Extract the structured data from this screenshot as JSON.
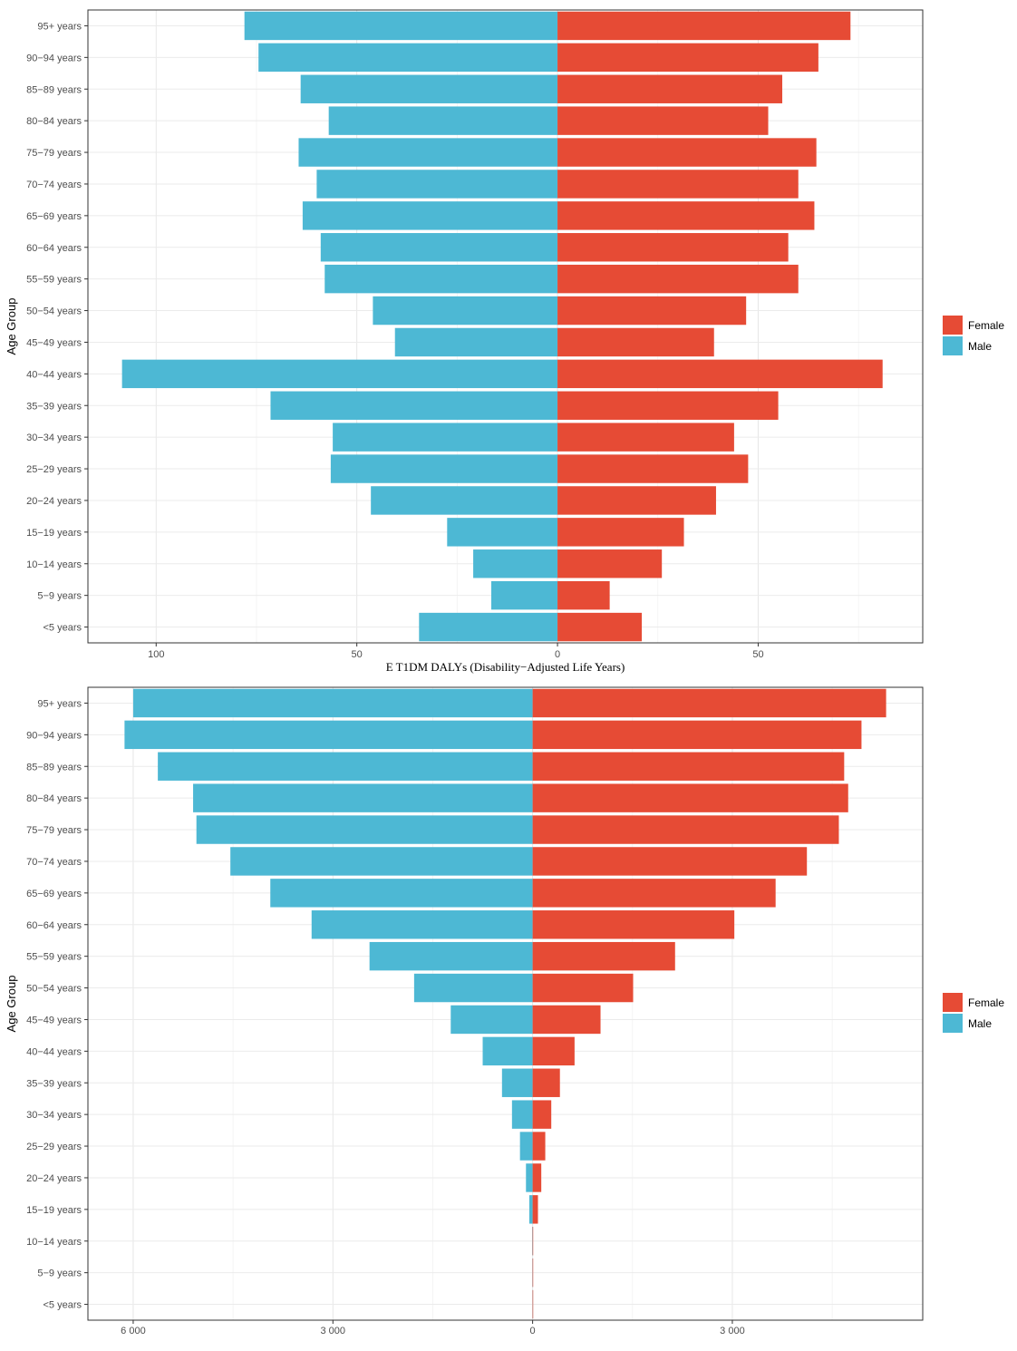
{
  "chart_data": [
    {
      "type": "bar",
      "orientation": "horizontal",
      "ylabel": "Age Group",
      "xlabel": "E  T1DM  DALYs (Disability−Adjusted Life Years)",
      "categories": [
        "95+ years",
        "90−94 years",
        "85−89 years",
        "80−84 years",
        "75−79 years",
        "70−74 years",
        "65−69 years",
        "60−64 years",
        "55−59 years",
        "50−54 years",
        "45−49 years",
        "40−44 years",
        "35−39 years",
        "30−34 years",
        "25−29 years",
        "20−24 years",
        "15−19 years",
        "10−14 years",
        "5−9 years",
        "<5 years"
      ],
      "series": [
        {
          "name": "Male",
          "color": "#4db8d4",
          "values": [
            -78,
            -74.5,
            -64,
            -57,
            -64.5,
            -60,
            -63.5,
            -59,
            -58,
            -46,
            -40.5,
            -108.5,
            -71.5,
            -56,
            -56.5,
            -46.5,
            -27.5,
            -21,
            -16.5,
            -34.5
          ]
        },
        {
          "name": "Female",
          "color": "#e64b35",
          "values": [
            73,
            65,
            56,
            52.5,
            64.5,
            60,
            64,
            57.5,
            60,
            47,
            39,
            81,
            55,
            44,
            47.5,
            39.5,
            31.5,
            26,
            13,
            21
          ]
        }
      ],
      "xlim": [
        -117,
        91
      ],
      "xticks": [
        -100,
        -50,
        0,
        50
      ],
      "xtick_labels": [
        "100",
        "50",
        "0",
        "50"
      ],
      "legend": {
        "position": "right",
        "entries": [
          "Female",
          "Male"
        ]
      },
      "grid": true
    },
    {
      "type": "bar",
      "orientation": "horizontal",
      "ylabel": "Age Group",
      "xlabel": "",
      "categories": [
        "95+ years",
        "90−94 years",
        "85−89 years",
        "80−84 years",
        "75−79 years",
        "70−74 years",
        "65−69 years",
        "60−64 years",
        "55−59 years",
        "50−54 years",
        "45−49 years",
        "40−44 years",
        "35−39 years",
        "30−34 years",
        "25−29 years",
        "20−24 years",
        "15−19 years",
        "10−14 years",
        "5−9 years",
        "<5 years"
      ],
      "series": [
        {
          "name": "Male",
          "color": "#4db8d4",
          "values": [
            -6000,
            -6130,
            -5630,
            -5100,
            -5050,
            -4540,
            -3940,
            -3320,
            -2450,
            -1780,
            -1230,
            -750,
            -460,
            -310,
            -190,
            -100,
            -50,
            -5,
            -3,
            -2
          ]
        },
        {
          "name": "Female",
          "color": "#e64b35",
          "values": [
            5310,
            4940,
            4680,
            4740,
            4600,
            4120,
            3650,
            3030,
            2140,
            1510,
            1020,
            630,
            410,
            280,
            190,
            130,
            80,
            5,
            3,
            2
          ]
        }
      ],
      "xlim": [
        -6680,
        5860
      ],
      "xticks": [
        -6000,
        -3000,
        0,
        3000
      ],
      "xtick_labels": [
        "6 000",
        "3 000",
        "0",
        "3 000"
      ],
      "legend": {
        "position": "right",
        "entries": [
          "Female",
          "Male"
        ]
      },
      "grid": true
    }
  ]
}
